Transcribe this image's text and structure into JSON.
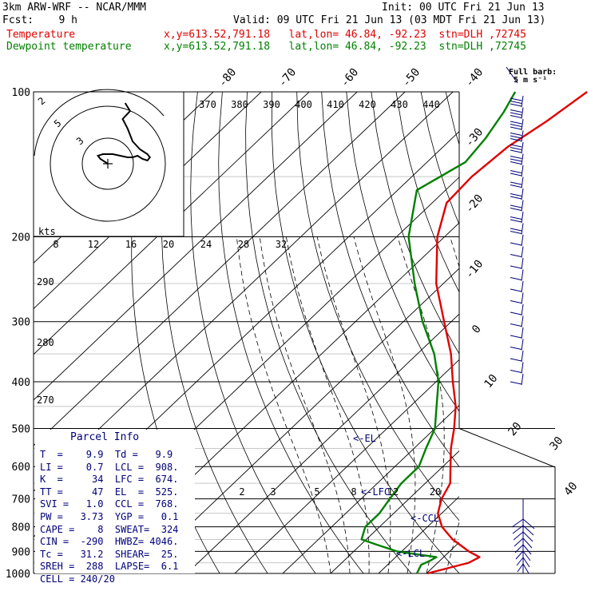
{
  "header": {
    "model": "3km ARW-WRF -- NCAR/MMM",
    "init": "Init: 00 UTC Fri 21 Jun 13",
    "fcst": "Fcst:    9 h",
    "valid": "Valid: 09 UTC Fri 21 Jun 13 (03 MDT Fri 21 Jun 13)",
    "temp_label": "Temperature",
    "dew_label": "Dewpoint temperature",
    "loc_temp": "x,y=613.52,791.18   lat,lon= 46.84, -92.23  stn=DLH ,72745",
    "loc_dew": "x,y=613.52,791.18   lat,lon= 46.84, -92.23  stn=DLH ,72745",
    "barb_key_1": "Full barb:",
    "barb_key_2": "5 m s⁻¹"
  },
  "colors": {
    "temperature": "#e00000",
    "dewpoint": "#008000",
    "labels": "#00007a",
    "grid": "#000000"
  },
  "chart_data": {
    "type": "line",
    "diagram": "skew-T log-p",
    "pressure_levels": [
      {
        "p": 100,
        "label": "100"
      },
      {
        "p": 200,
        "label": "200"
      },
      {
        "p": 300,
        "label": "300"
      },
      {
        "p": 400,
        "label": "400"
      },
      {
        "p": 500,
        "label": "500"
      },
      {
        "p": 600,
        "label": "600"
      },
      {
        "p": 700,
        "label": "700"
      },
      {
        "p": 800,
        "label": "800"
      },
      {
        "p": 900,
        "label": "900"
      },
      {
        "p": 1000,
        "label": "1000"
      }
    ],
    "isotherm_labels": [
      {
        "t": -80,
        "label": "-80"
      },
      {
        "t": -70,
        "label": "-70"
      },
      {
        "t": -60,
        "label": "-60"
      },
      {
        "t": -50,
        "label": "-50"
      },
      {
        "t": -40,
        "label": "-40"
      },
      {
        "t": -30,
        "label": "-30"
      },
      {
        "t": -20,
        "label": "-20"
      },
      {
        "t": -10,
        "label": "-10"
      },
      {
        "t": 0,
        "label": "0"
      },
      {
        "t": 10,
        "label": "10"
      },
      {
        "t": 20,
        "label": "20"
      },
      {
        "t": 30,
        "label": "30"
      },
      {
        "t": 40,
        "label": "40"
      }
    ],
    "theta_labels_top": [
      "370",
      "380",
      "390",
      "400",
      "410",
      "420",
      "430",
      "440"
    ],
    "theta_labels_left": [
      "290",
      "280",
      "270"
    ],
    "mixing_ratio_labels": [
      "2",
      "3",
      "5",
      "8",
      "12",
      "20"
    ],
    "hodograph": {
      "speed_axis_label": "kts",
      "speed_ticks": [
        "8",
        "12",
        "16",
        "20",
        "24",
        "28",
        "32"
      ],
      "ring_labels": [
        "5",
        "3",
        "2"
      ],
      "trace": [
        [
          0,
          0
        ],
        [
          -3,
          3
        ],
        [
          -4,
          5
        ],
        [
          -2,
          6
        ],
        [
          2,
          6
        ],
        [
          5,
          5
        ],
        [
          8,
          4
        ],
        [
          10,
          4
        ],
        [
          12,
          5
        ],
        [
          14,
          3
        ],
        [
          16,
          2
        ],
        [
          17,
          4
        ],
        [
          16,
          6
        ],
        [
          13,
          9
        ],
        [
          10,
          14
        ],
        [
          8,
          22
        ],
        [
          6,
          28
        ],
        [
          9,
          33
        ],
        [
          7,
          38
        ]
      ]
    },
    "series": [
      {
        "name": "Temperature",
        "points": [
          [
            1000,
            20.2
          ],
          [
            950,
            26.5
          ],
          [
            925,
            27.5
          ],
          [
            900,
            24.0
          ],
          [
            850,
            18.0
          ],
          [
            800,
            13.0
          ],
          [
            750,
            9.2
          ],
          [
            700,
            6.8
          ],
          [
            650,
            5.2
          ],
          [
            600,
            1.6
          ],
          [
            550,
            -2.3
          ],
          [
            500,
            -6.0
          ],
          [
            450,
            -10.5
          ],
          [
            400,
            -16.5
          ],
          [
            350,
            -23.0
          ],
          [
            300,
            -31.5
          ],
          [
            250,
            -41.5
          ],
          [
            200,
            -51.5
          ],
          [
            170,
            -57.0
          ],
          [
            150,
            -57.5
          ],
          [
            130,
            -56.5
          ],
          [
            115,
            -54.0
          ],
          [
            100,
            -52.0
          ]
        ]
      },
      {
        "name": "Dewpoint temperature",
        "points": [
          [
            1000,
            18.0
          ],
          [
            960,
            17.0
          ],
          [
            940,
            18.0
          ],
          [
            925,
            18.5
          ],
          [
            900,
            9.0
          ],
          [
            870,
            3.0
          ],
          [
            850,
            -1.0
          ],
          [
            800,
            -3.0
          ],
          [
            750,
            -3.0
          ],
          [
            700,
            -4.0
          ],
          [
            650,
            -5.0
          ],
          [
            600,
            -5.0
          ],
          [
            550,
            -7.5
          ],
          [
            500,
            -10.0
          ],
          [
            450,
            -14.5
          ],
          [
            400,
            -19.5
          ],
          [
            350,
            -26.5
          ],
          [
            300,
            -36.0
          ],
          [
            250,
            -46.0
          ],
          [
            200,
            -57.5
          ],
          [
            160,
            -66.0
          ],
          [
            140,
            -62.0
          ],
          [
            125,
            -63.0
          ],
          [
            110,
            -65.0
          ],
          [
            100,
            -67.0
          ]
        ]
      }
    ],
    "annotations": [
      "<-EL",
      "<-LFC",
      "<-CCL",
      "<-LCL"
    ],
    "wind_barbs_p": [
      110,
      125,
      140,
      155,
      170,
      185,
      200,
      215,
      230,
      245,
      260,
      275,
      290,
      305,
      320,
      335,
      350,
      365,
      380,
      395,
      410,
      425,
      440,
      455,
      470
    ]
  },
  "parcel_info": {
    "title": "Parcel Info",
    "rows": [
      "T  =    9.9  Td =   9.9",
      "LI =    0.7  LCL =  908.",
      "K  =     34  LFC =  674.",
      "TT =     47  EL  =  525.",
      "SVI =   1.0  CCL =  768.",
      "PW =   3.73  YGP =   0.1",
      "CAPE =    8  SWEAT=  324",
      "CIN =  -290  HWBZ= 4046.",
      "Tc =   31.2  SHEAR=  25.",
      "SREH =  288  LAPSE=  6.1",
      "CELL = 240/20"
    ]
  }
}
